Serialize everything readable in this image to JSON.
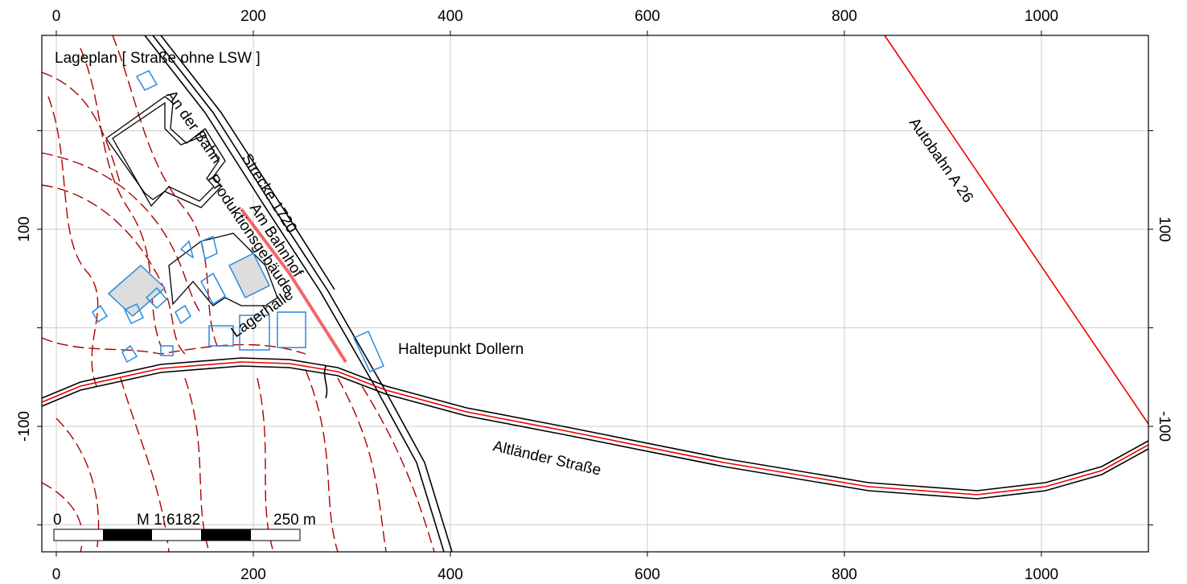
{
  "chart_data": {
    "type": "map",
    "title": "Lageplan  [ Straße ohne LSW ]",
    "xlim": [
      -14.7,
      1108.6
    ],
    "ylim": [
      -227.3,
      296.7
    ],
    "xticks": [
      0,
      200,
      400,
      600,
      800,
      1000
    ],
    "yticks": [
      -100,
      100
    ],
    "ygrid": [
      -200,
      -100,
      0,
      100,
      200
    ],
    "grid": true,
    "labels": {
      "an_der_bahn": "An der Bahn",
      "strecke": "Strecke 1720",
      "produktion": "Produktionsgebäude",
      "bahnhof": "Am Bahnhof",
      "lagerhalle": "Lagerhalle",
      "haltepunkt": "Haltepunkt Dollern",
      "autobahn": "Autobahn A 26",
      "altlaender": "Altländer Straße"
    },
    "scale_bar": {
      "start": "0",
      "scale": "M 1:6182",
      "end": "250 m"
    }
  }
}
